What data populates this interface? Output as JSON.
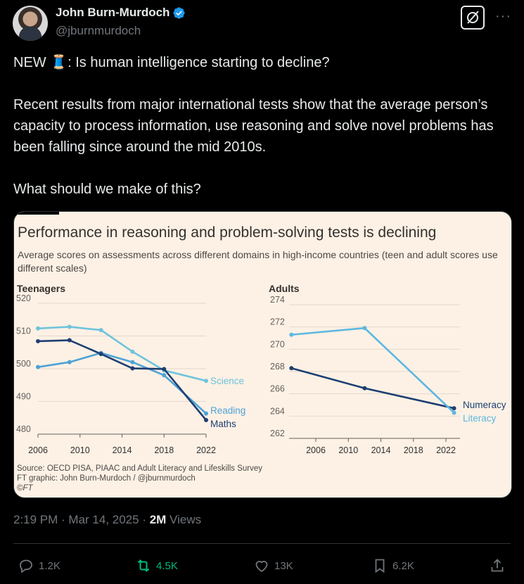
{
  "author": {
    "name": "John Burn-Murdoch",
    "handle": "@jburnmurdoch"
  },
  "tweet": {
    "line1": "NEW 🧵: Is human intelligence starting to decline?",
    "line2": "Recent results from major international tests show that the average person’s capacity to process information, use reasoning and solve novel problems has been falling since around the mid 2010s.",
    "line3": "What should we make of this?"
  },
  "chart": {
    "title": "Performance in reasoning and problem-solving tests is declining",
    "subtitle": "Average scores on assessments across different domains in high-income countries (teen and adult scores use different scales)",
    "source_line1": "Source: OECD PISA, PIAAC and Adult Literacy and Lifeskills Survey",
    "source_line2": "FT graphic: John Burn-Murdoch / @jburnmurdoch",
    "source_line3": "©FT"
  },
  "chart_data": [
    {
      "type": "line",
      "panel": "Teenagers",
      "xlim": [
        2006,
        2022
      ],
      "xticks": [
        2006,
        2010,
        2014,
        2018,
        2022
      ],
      "ylim": [
        480,
        520
      ],
      "yticks": [
        480,
        490,
        500,
        510,
        520
      ],
      "series": [
        {
          "name": "Science",
          "color": "#6fc3dc",
          "x": [
            2006,
            2009,
            2012,
            2015,
            2018,
            2022
          ],
          "values": [
            512.3,
            512.8,
            511.8,
            505.2,
            499.5,
            496.3
          ]
        },
        {
          "name": "Reading",
          "color": "#4ea2d6",
          "x": [
            2006,
            2009,
            2012,
            2015,
            2018,
            2022
          ],
          "values": [
            500.5,
            502.0,
            504.8,
            502.0,
            498.0,
            486.3
          ]
        },
        {
          "name": "Maths",
          "color": "#1d3f72",
          "x": [
            2006,
            2009,
            2012,
            2015,
            2018,
            2022
          ],
          "values": [
            508.4,
            508.7,
            504.5,
            500.1,
            499.9,
            484.3
          ]
        }
      ]
    },
    {
      "type": "line",
      "panel": "Adults",
      "xlim": [
        2003,
        2023
      ],
      "xticks": [
        2006,
        2010,
        2014,
        2018,
        2022
      ],
      "ylim": [
        262,
        274
      ],
      "yticks": [
        262,
        264,
        266,
        268,
        270,
        272,
        274
      ],
      "series": [
        {
          "name": "Numeracy",
          "color": "#1d3f72",
          "x": [
            2003,
            2012,
            2023
          ],
          "values": [
            268.3,
            266.5,
            264.7
          ]
        },
        {
          "name": "Literacy",
          "color": "#5eb7e0",
          "x": [
            2003,
            2012,
            2023
          ],
          "values": [
            271.3,
            271.9,
            264.3
          ]
        }
      ]
    }
  ],
  "meta": {
    "time": "2:19 PM · Mar 14, 2025 · ",
    "views_count": "2M",
    "views_label": " Views"
  },
  "actions": {
    "replies": "1.2K",
    "reposts": "4.5K",
    "likes": "13K",
    "bookmarks": "6.2K"
  }
}
